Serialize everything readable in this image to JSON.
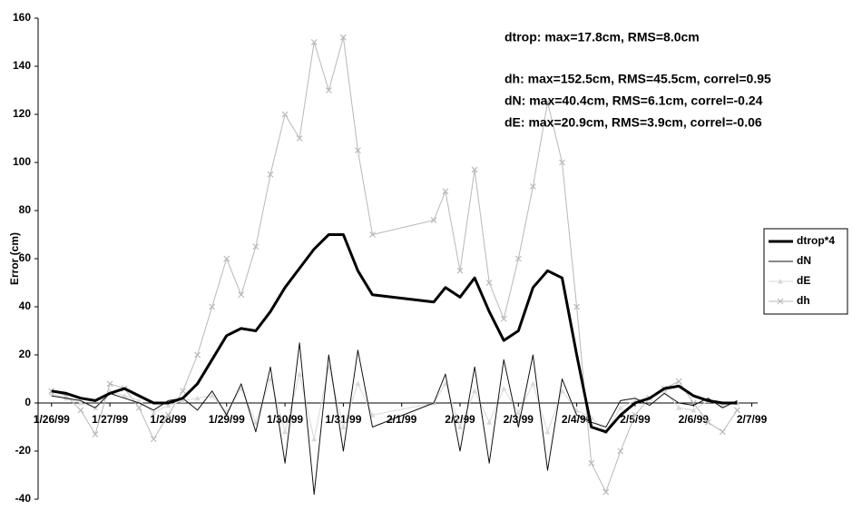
{
  "chart_data": {
    "type": "line",
    "y_label": "Error (cm)",
    "annotations": [
      "dtrop: max=17.8cm, RMS=8.0cm",
      "dh: max=152.5cm, RMS=45.5cm, correl=0.95",
      "dN: max=40.4cm, RMS=6.1cm, correl=-0.24",
      "dE: max=20.9cm, RMS=3.9cm, correl=-0.06"
    ],
    "legend": "right",
    "x": [
      0,
      0.25,
      0.5,
      0.75,
      1,
      1.25,
      1.5,
      1.75,
      2,
      2.25,
      2.5,
      2.75,
      3,
      3.25,
      3.5,
      3.75,
      4,
      4.25,
      4.5,
      4.75,
      5,
      5.25,
      5.5,
      6.55,
      6.75,
      7,
      7.25,
      7.5,
      7.75,
      8,
      8.25,
      8.5,
      8.75,
      9,
      9.25,
      9.5,
      9.75,
      10,
      10.25,
      10.5,
      10.75,
      11,
      11.25,
      11.5,
      11.75
    ],
    "series": [
      {
        "name": "dtrop*4",
        "color": "#000000",
        "width": 3,
        "marker": "none",
        "values": [
          5,
          4,
          2,
          1,
          4,
          6,
          3,
          0,
          0,
          2,
          8,
          18,
          28,
          31,
          30,
          38,
          48,
          56,
          64,
          70,
          70,
          55,
          45,
          42,
          48,
          44,
          52,
          38,
          26,
          30,
          48,
          55,
          52,
          20,
          -10,
          -12,
          -5,
          0,
          2,
          6,
          7,
          3,
          1,
          0,
          0
        ]
      },
      {
        "name": "dN",
        "color": "#111111",
        "width": 1,
        "marker": "none",
        "values": [
          3,
          2,
          1,
          -2,
          4,
          2,
          0,
          -3,
          1,
          2,
          -3,
          5,
          -5,
          8,
          -12,
          15,
          -25,
          25,
          -38,
          20,
          -20,
          22,
          -10,
          0,
          12,
          -20,
          15,
          -25,
          18,
          -10,
          20,
          -28,
          10,
          -5,
          -8,
          -10,
          1,
          2,
          -1,
          4,
          0,
          -1,
          2,
          -2,
          1
        ]
      },
      {
        "name": "dE",
        "color": "#d9d9d9",
        "width": 1,
        "marker": "triangle",
        "values": [
          4,
          2,
          0,
          -2,
          5,
          3,
          1,
          -4,
          -1,
          1,
          2,
          3,
          -4,
          6,
          -8,
          10,
          -12,
          12,
          -15,
          15,
          -10,
          8,
          -5,
          0,
          8,
          -10,
          5,
          -8,
          6,
          -4,
          8,
          -12,
          5,
          -3,
          -6,
          -12,
          -2,
          1,
          2,
          5,
          -2,
          -3,
          1,
          -1,
          0
        ]
      },
      {
        "name": "dh",
        "color": "#b8b8b8",
        "width": 1,
        "marker": "x",
        "values": [
          5,
          3,
          -3,
          -13,
          8,
          6,
          -2,
          -15,
          -5,
          5,
          20,
          40,
          60,
          45,
          65,
          95,
          120,
          110,
          150,
          130,
          152,
          105,
          70,
          76,
          88,
          55,
          97,
          50,
          35,
          60,
          90,
          125,
          100,
          40,
          -25,
          -37,
          -20,
          -5,
          2,
          6,
          9,
          0,
          -8,
          -12,
          -3
        ]
      }
    ],
    "xlim": [
      -0.23,
      12.1
    ],
    "xticks": [
      {
        "value": 0,
        "label": "1/26/99"
      },
      {
        "value": 1,
        "label": "1/27/99"
      },
      {
        "value": 2,
        "label": "1/28/99"
      },
      {
        "value": 3,
        "label": "1/29/99"
      },
      {
        "value": 4,
        "label": "1/30/99"
      },
      {
        "value": 5,
        "label": "1/31/99"
      },
      {
        "value": 6,
        "label": "2/1/99"
      },
      {
        "value": 7,
        "label": "2/2/99"
      },
      {
        "value": 8,
        "label": "2/3/99"
      },
      {
        "value": 9,
        "label": "2/4/99"
      },
      {
        "value": 10,
        "label": "2/5/99"
      },
      {
        "value": 11,
        "label": "2/6/99"
      },
      {
        "value": 12,
        "label": "2/7/99"
      }
    ],
    "ylim": [
      -40,
      160
    ],
    "yticks": [
      -40,
      -20,
      0,
      20,
      40,
      60,
      80,
      100,
      120,
      140,
      160
    ],
    "grid": false
  }
}
